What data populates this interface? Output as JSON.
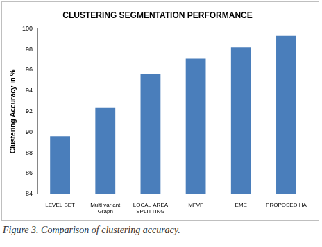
{
  "chart_data": {
    "type": "bar",
    "title": "CLUSTERING SEGMENTATION PERFORMANCE",
    "caption": "Figure 3. Comparison of clustering accuracy.",
    "y_label": "Clustering Accuracy in %",
    "categories": [
      "LEVEL SET",
      "Multi variant Graph",
      "LOCAL AREA SPLITTING",
      "MFVF",
      "EME",
      "PROPOSED HA"
    ],
    "values": [
      89.6,
      92.4,
      95.6,
      97.1,
      98.2,
      99.3
    ],
    "color": "#4a7ebb",
    "ylim": [
      84,
      100
    ],
    "yticks": [
      84,
      86,
      88,
      90,
      92,
      94,
      96,
      98,
      100
    ],
    "grid": false
  }
}
